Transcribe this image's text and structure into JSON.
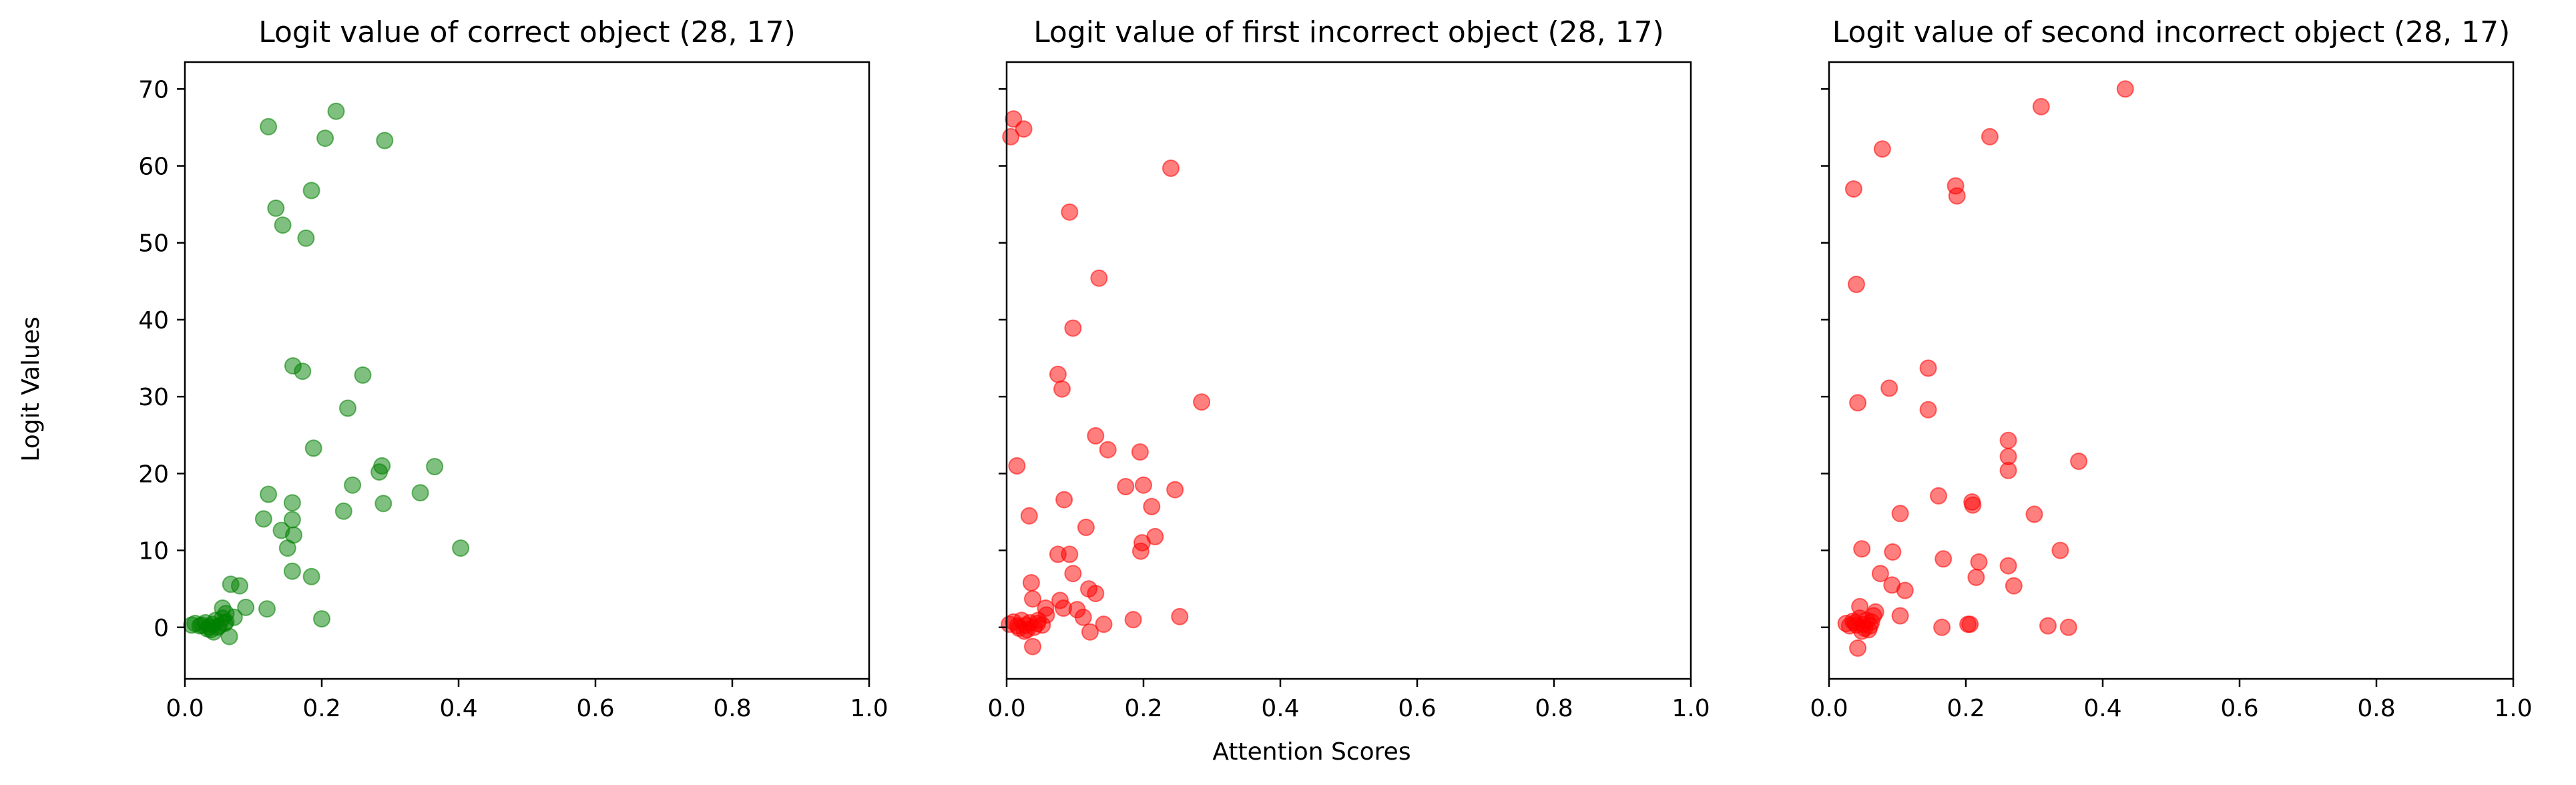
{
  "figure": {
    "ylabel": "Logit Values",
    "xlabel": "Attention Scores"
  },
  "chart_data": [
    {
      "type": "scatter",
      "title": "Logit value of correct object (28, 17)",
      "xlabel": "",
      "ylabel": "Logit Values",
      "xlim": [
        0.0,
        1.0
      ],
      "ylim": [
        -6.7,
        73.5
      ],
      "xticks": [
        "0.0",
        "0.2",
        "0.4",
        "0.6",
        "0.8",
        "1.0"
      ],
      "yticks": [
        "0",
        "10",
        "20",
        "30",
        "40",
        "50",
        "60",
        "70"
      ],
      "color": "#008000",
      "points": [
        [
          0.122,
          65.1
        ],
        [
          0.221,
          67.1
        ],
        [
          0.205,
          63.6
        ],
        [
          0.292,
          63.3
        ],
        [
          0.133,
          54.5
        ],
        [
          0.143,
          52.3
        ],
        [
          0.185,
          56.8
        ],
        [
          0.177,
          50.6
        ],
        [
          0.158,
          34.0
        ],
        [
          0.172,
          33.3
        ],
        [
          0.26,
          32.8
        ],
        [
          0.238,
          28.5
        ],
        [
          0.188,
          23.3
        ],
        [
          0.122,
          17.3
        ],
        [
          0.157,
          16.2
        ],
        [
          0.288,
          21.0
        ],
        [
          0.284,
          20.2
        ],
        [
          0.365,
          20.9
        ],
        [
          0.245,
          18.5
        ],
        [
          0.344,
          17.5
        ],
        [
          0.29,
          16.1
        ],
        [
          0.232,
          15.1
        ],
        [
          0.115,
          14.1
        ],
        [
          0.157,
          14.0
        ],
        [
          0.141,
          12.6
        ],
        [
          0.159,
          12.0
        ],
        [
          0.15,
          10.3
        ],
        [
          0.403,
          10.3
        ],
        [
          0.157,
          7.3
        ],
        [
          0.185,
          6.6
        ],
        [
          0.067,
          5.6
        ],
        [
          0.08,
          5.4
        ],
        [
          0.089,
          2.6
        ],
        [
          0.12,
          2.4
        ],
        [
          0.2,
          1.1
        ],
        [
          0.055,
          2.5
        ],
        [
          0.06,
          1.8
        ],
        [
          0.072,
          1.3
        ],
        [
          0.01,
          0.3
        ],
        [
          0.015,
          0.5
        ],
        [
          0.022,
          0.2
        ],
        [
          0.03,
          0.6
        ],
        [
          0.035,
          0.1
        ],
        [
          0.04,
          0.4
        ],
        [
          0.045,
          0.9
        ],
        [
          0.05,
          0.2
        ],
        [
          0.055,
          1.2
        ],
        [
          0.06,
          0.7
        ],
        [
          0.065,
          -1.2
        ],
        [
          0.038,
          -0.3
        ],
        [
          0.042,
          -0.6
        ],
        [
          0.048,
          0.0
        ],
        [
          0.025,
          0.3
        ],
        [
          0.033,
          -0.2
        ],
        [
          0.058,
          0.5
        ]
      ]
    },
    {
      "type": "scatter",
      "title": "Logit value of first incorrect object (28, 17)",
      "xlabel": "Attention Scores",
      "ylabel": "",
      "xlim": [
        0.0,
        1.0
      ],
      "ylim": [
        -6.7,
        73.5
      ],
      "xticks": [
        "0.0",
        "0.2",
        "0.4",
        "0.6",
        "0.8",
        "1.0"
      ],
      "yticks": [],
      "color": "#ff0000",
      "points": [
        [
          0.01,
          66.1
        ],
        [
          0.025,
          64.8
        ],
        [
          0.006,
          63.8
        ],
        [
          0.24,
          59.7
        ],
        [
          0.092,
          54.0
        ],
        [
          0.135,
          45.4
        ],
        [
          0.097,
          38.9
        ],
        [
          0.075,
          32.9
        ],
        [
          0.081,
          31.0
        ],
        [
          0.285,
          29.3
        ],
        [
          0.13,
          24.9
        ],
        [
          0.148,
          23.1
        ],
        [
          0.195,
          22.8
        ],
        [
          0.015,
          21.0
        ],
        [
          0.2,
          18.5
        ],
        [
          0.174,
          18.3
        ],
        [
          0.246,
          17.9
        ],
        [
          0.084,
          16.6
        ],
        [
          0.212,
          15.7
        ],
        [
          0.033,
          14.5
        ],
        [
          0.116,
          13.0
        ],
        [
          0.217,
          11.8
        ],
        [
          0.198,
          11.0
        ],
        [
          0.196,
          9.9
        ],
        [
          0.075,
          9.5
        ],
        [
          0.092,
          9.5
        ],
        [
          0.097,
          7.0
        ],
        [
          0.036,
          5.8
        ],
        [
          0.12,
          5.0
        ],
        [
          0.13,
          4.4
        ],
        [
          0.038,
          3.7
        ],
        [
          0.078,
          3.5
        ],
        [
          0.083,
          2.5
        ],
        [
          0.057,
          2.5
        ],
        [
          0.103,
          2.3
        ],
        [
          0.112,
          1.3
        ],
        [
          0.253,
          1.4
        ],
        [
          0.185,
          1.0
        ],
        [
          0.142,
          0.4
        ],
        [
          0.004,
          0.4
        ],
        [
          0.01,
          0.7
        ],
        [
          0.016,
          0.2
        ],
        [
          0.022,
          0.9
        ],
        [
          0.028,
          0.3
        ],
        [
          0.034,
          0.6
        ],
        [
          0.04,
          0.0
        ],
        [
          0.046,
          0.9
        ],
        [
          0.052,
          0.3
        ],
        [
          0.03,
          -0.3
        ],
        [
          0.026,
          -0.5
        ],
        [
          0.045,
          0.5
        ],
        [
          0.038,
          -2.5
        ],
        [
          0.122,
          -0.6
        ],
        [
          0.058,
          1.6
        ],
        [
          0.018,
          -0.1
        ]
      ]
    },
    {
      "type": "scatter",
      "title": "Logit value of second incorrect object (28, 17)",
      "xlabel": "",
      "ylabel": "",
      "xlim": [
        0.0,
        1.0
      ],
      "ylim": [
        -6.7,
        73.5
      ],
      "xticks": [
        "0.0",
        "0.2",
        "0.4",
        "0.6",
        "0.8",
        "1.0"
      ],
      "yticks": [],
      "color": "#ff0000",
      "points": [
        [
          0.433,
          70.0
        ],
        [
          0.31,
          67.7
        ],
        [
          0.078,
          62.2
        ],
        [
          0.235,
          63.8
        ],
        [
          0.185,
          57.4
        ],
        [
          0.187,
          56.1
        ],
        [
          0.036,
          57.0
        ],
        [
          0.04,
          44.6
        ],
        [
          0.145,
          33.7
        ],
        [
          0.088,
          31.1
        ],
        [
          0.042,
          29.2
        ],
        [
          0.145,
          28.3
        ],
        [
          0.262,
          24.3
        ],
        [
          0.262,
          22.2
        ],
        [
          0.365,
          21.6
        ],
        [
          0.262,
          20.4
        ],
        [
          0.16,
          17.1
        ],
        [
          0.209,
          16.3
        ],
        [
          0.21,
          15.9
        ],
        [
          0.104,
          14.8
        ],
        [
          0.3,
          14.7
        ],
        [
          0.048,
          10.2
        ],
        [
          0.338,
          10.0
        ],
        [
          0.093,
          9.8
        ],
        [
          0.167,
          8.9
        ],
        [
          0.219,
          8.5
        ],
        [
          0.262,
          8.0
        ],
        [
          0.075,
          7.0
        ],
        [
          0.215,
          6.5
        ],
        [
          0.092,
          5.5
        ],
        [
          0.111,
          4.8
        ],
        [
          0.27,
          5.4
        ],
        [
          0.045,
          2.7
        ],
        [
          0.068,
          2.0
        ],
        [
          0.104,
          1.5
        ],
        [
          0.203,
          0.4
        ],
        [
          0.206,
          0.4
        ],
        [
          0.165,
          0.0
        ],
        [
          0.32,
          0.2
        ],
        [
          0.35,
          0.0
        ],
        [
          0.025,
          0.5
        ],
        [
          0.03,
          0.2
        ],
        [
          0.035,
          0.8
        ],
        [
          0.04,
          0.3
        ],
        [
          0.045,
          1.2
        ],
        [
          0.05,
          0.4
        ],
        [
          0.055,
          0.9
        ],
        [
          0.06,
          0.2
        ],
        [
          0.065,
          1.5
        ],
        [
          0.048,
          -0.5
        ],
        [
          0.058,
          -0.3
        ],
        [
          0.042,
          -2.7
        ],
        [
          0.038,
          0.6
        ],
        [
          0.052,
          -0.1
        ],
        [
          0.062,
          0.7
        ]
      ]
    }
  ]
}
